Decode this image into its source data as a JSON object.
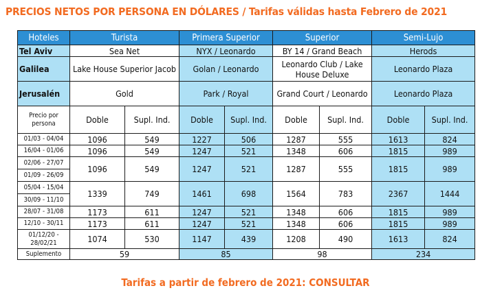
{
  "title": "PRECIOS NETOS POR PERSONA EN DÓLARES / Tarifas válidas hasta Febrero de 2021",
  "footer": "Tarifas a partir de febrero de 2021: CONSULTAR",
  "header": {
    "hoteles": "Hoteles",
    "categories": [
      "Turista",
      "Primera Superior",
      "Superior",
      "Semi-Lujo"
    ]
  },
  "cities": [
    {
      "name": "Tel Aviv",
      "hotels": [
        "Sea Net",
        "NYX / Leonardo",
        "BY 14 / Grand Beach",
        "Herods"
      ]
    },
    {
      "name": "Galilea",
      "hotels": [
        "Lake House Superior Jacob",
        "Golan / Leonardo",
        "Leonardo Club / Lake House Deluxe",
        "Leonardo Plaza"
      ]
    },
    {
      "name": "Jerusalén",
      "hotels": [
        "Gold",
        "Park / Royal",
        "Grand Court / Leonardo",
        "Leonardo Plaza"
      ]
    }
  ],
  "price_header": {
    "label": "Precio por persona",
    "doble": "Doble",
    "supl": "Supl. Ind."
  },
  "periods": [
    {
      "dates": [
        "01/03 - 04/04"
      ],
      "values": [
        "1096",
        "549",
        "1227",
        "506",
        "1287",
        "555",
        "1613",
        "824"
      ]
    },
    {
      "dates": [
        "16/04 - 01/06"
      ],
      "values": [
        "1096",
        "549",
        "1247",
        "521",
        "1348",
        "606",
        "1815",
        "989"
      ]
    },
    {
      "dates": [
        "02/06 - 27/07",
        "01/09 - 26/09"
      ],
      "values": [
        "1096",
        "549",
        "1247",
        "521",
        "1287",
        "555",
        "1815",
        "989"
      ]
    },
    {
      "dates": [
        "05/04 - 15/04",
        "30/09 - 11/10"
      ],
      "values": [
        "1339",
        "749",
        "1461",
        "698",
        "1564",
        "783",
        "2367",
        "1444"
      ]
    },
    {
      "dates": [
        "28/07 - 31/08"
      ],
      "values": [
        "1173",
        "611",
        "1247",
        "521",
        "1348",
        "606",
        "1815",
        "989"
      ]
    },
    {
      "dates": [
        "12/10 - 30/11"
      ],
      "values": [
        "1173",
        "611",
        "1247",
        "521",
        "1348",
        "606",
        "1815",
        "989"
      ]
    },
    {
      "dates": [
        "01/12/20 -",
        "28/02/21"
      ],
      "values": [
        "1074",
        "530",
        "1147",
        "439",
        "1208",
        "490",
        "1613",
        "824"
      ]
    }
  ],
  "suplemento": {
    "label": "Suplemento",
    "values": [
      "59",
      "85",
      "98",
      "234"
    ]
  },
  "colors": {
    "accent": "#f26b21",
    "header_blue": "#2d8fd4",
    "light_blue": "#aee0f5"
  }
}
